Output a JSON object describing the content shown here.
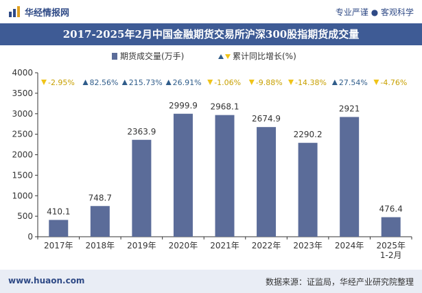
{
  "header": {
    "brand": "华经情报网",
    "slogan": "专业严谨 ● 客观科学"
  },
  "footer": {
    "url": "www.huaon.com",
    "source": "数据来源：证监局，华经产业研究院整理"
  },
  "colors": {
    "bar": "#5b6c99",
    "title_band": "#3e5b95",
    "up": "#2f5c8a",
    "down": "#f0c419",
    "down_text": "#c8a000"
  },
  "chart_data": {
    "type": "bar",
    "title": "2017-2025年2月中国金融期货交易所沪深300股指期货成交量",
    "categories": [
      "2017年",
      "2018年",
      "2019年",
      "2020年",
      "2021年",
      "2022年",
      "2023年",
      "2024年",
      "2025年\n1-2月"
    ],
    "series": [
      {
        "name": "期货成交量(万手)",
        "values": [
          410.1,
          748.7,
          2363.9,
          2999.9,
          2968.1,
          2674.9,
          2290.2,
          2921,
          476.4
        ]
      }
    ],
    "value_labels": [
      "410.1",
      "748.7",
      "2363.9",
      "2999.9",
      "2968.1",
      "2674.9",
      "2290.2",
      "2921",
      "476.4"
    ],
    "growth": {
      "name": "累计同比增长(%)",
      "labels": [
        "-2.95%",
        "82.56%",
        "215.73%",
        "26.91%",
        "-1.06%",
        "-9.88%",
        "-14.38%",
        "27.54%",
        "-4.76%"
      ],
      "direction": [
        "down",
        "up",
        "up",
        "up",
        "down",
        "down",
        "down",
        "up",
        "down"
      ]
    },
    "ylim": [
      0,
      4000
    ],
    "yticks": [
      0,
      500,
      1000,
      1500,
      2000,
      2500,
      3000,
      3500,
      4000
    ],
    "legend_position": "top-center",
    "grid": false
  }
}
